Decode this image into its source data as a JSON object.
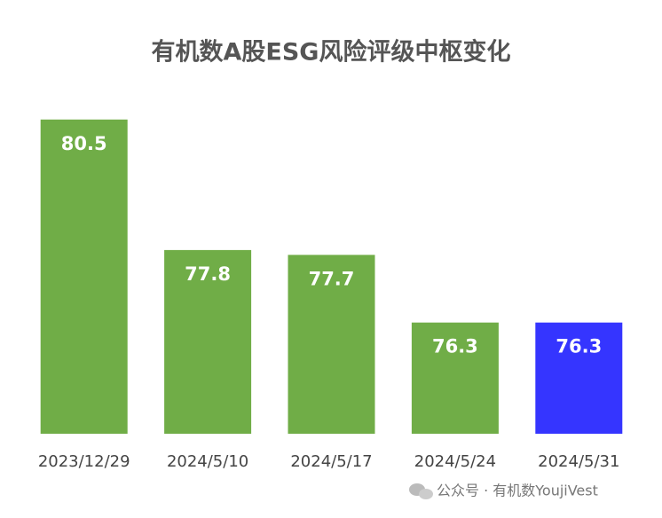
{
  "chart_data": {
    "type": "bar",
    "title": "有机数A股ESG风险评级中枢变化",
    "categories": [
      "2023/12/29",
      "2024/5/10",
      "2024/5/17",
      "2024/5/24",
      "2024/5/31"
    ],
    "values": [
      80.5,
      77.8,
      77.7,
      76.3,
      76.3
    ],
    "colors": [
      "#70ad47",
      "#70ad47",
      "#70ad47",
      "#70ad47",
      "#3535ff"
    ],
    "ylim": [
      74,
      81
    ],
    "watermark": "公众号 · 有机数YoujiVest"
  }
}
